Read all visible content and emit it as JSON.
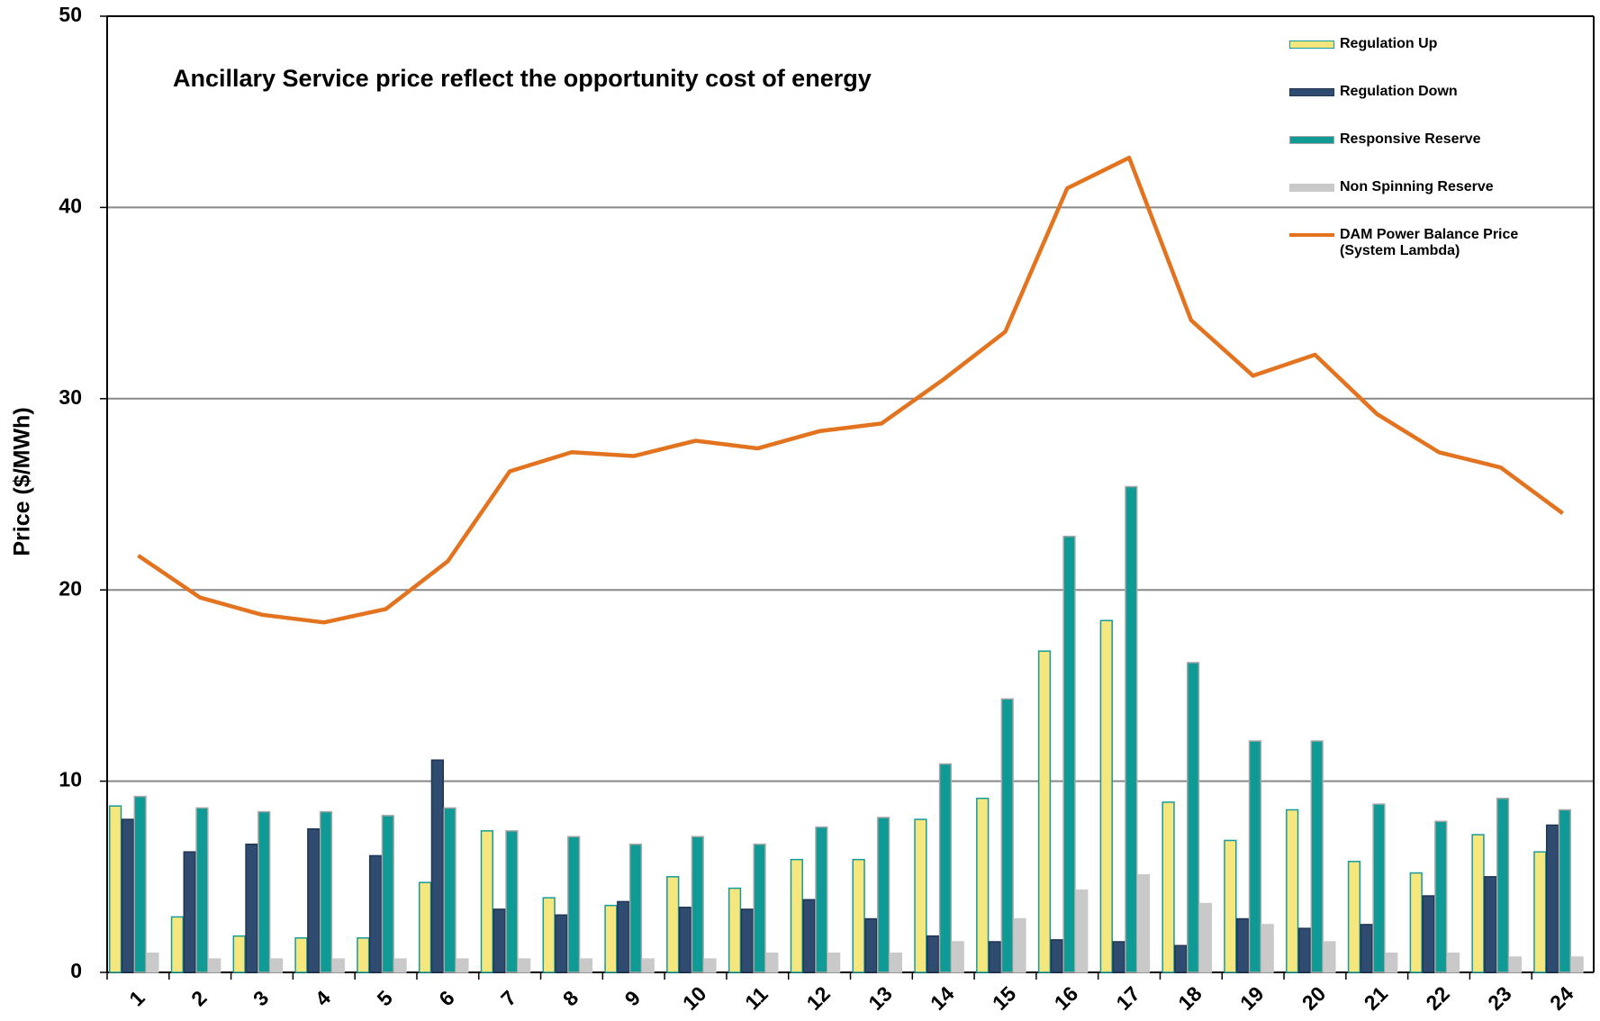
{
  "chart_data": {
    "type": "bar",
    "title": "Ancillary Service price reflect the opportunity cost of energy",
    "y_label": "Price ($/MWh)",
    "categories": [
      "1",
      "2",
      "3",
      "4",
      "5",
      "6",
      "7",
      "8",
      "9",
      "10",
      "11",
      "12",
      "13",
      "14",
      "15",
      "16",
      "17",
      "18",
      "19",
      "20",
      "21",
      "22",
      "23",
      "24"
    ],
    "ylim": [
      0,
      50
    ],
    "yticks": [
      0,
      10,
      20,
      30,
      40,
      50
    ],
    "grid": true,
    "legend": "upper right",
    "series": [
      {
        "name": "Regulation Up",
        "color": "#f6e67e",
        "edge": "#169a9a",
        "values": [
          8.7,
          2.9,
          1.9,
          1.8,
          1.8,
          4.7,
          7.4,
          3.9,
          3.5,
          5.0,
          4.4,
          5.9,
          5.9,
          8.0,
          9.1,
          16.8,
          18.4,
          8.9,
          6.9,
          8.5,
          5.8,
          5.2,
          7.2,
          6.3
        ]
      },
      {
        "name": "Regulation Down",
        "color": "#2f4b6f",
        "edge": "#1f3553",
        "values": [
          8.0,
          6.3,
          6.7,
          7.5,
          6.1,
          11.1,
          3.3,
          3.0,
          3.7,
          3.4,
          3.3,
          3.8,
          2.8,
          1.9,
          1.6,
          1.7,
          1.6,
          1.4,
          2.8,
          2.3,
          2.5,
          4.0,
          5.0,
          7.7
        ]
      },
      {
        "name": "Responsive Reserve",
        "color": "#0f9a96",
        "edge": "#a8a8a8",
        "values": [
          9.2,
          8.6,
          8.4,
          8.4,
          8.2,
          8.6,
          7.4,
          7.1,
          6.7,
          7.1,
          6.7,
          7.6,
          8.1,
          10.9,
          14.3,
          22.8,
          25.4,
          16.2,
          12.1,
          12.1,
          8.8,
          7.9,
          9.1,
          8.5
        ]
      },
      {
        "name": "Non Spinning Reserve",
        "color": "#c9c9c9",
        "edge": "#c9c9c9",
        "values": [
          1.0,
          0.7,
          0.7,
          0.7,
          0.7,
          0.7,
          0.7,
          0.7,
          0.7,
          0.7,
          1.0,
          1.0,
          1.0,
          1.6,
          2.8,
          4.3,
          5.1,
          3.6,
          2.5,
          1.6,
          1.0,
          1.0,
          0.8,
          0.8
        ]
      },
      {
        "name": "DAM Power Balance Price (System Lambda)",
        "type": "line",
        "color": "#e3731e",
        "values": [
          21.8,
          19.6,
          18.7,
          18.3,
          19.0,
          21.5,
          26.2,
          27.2,
          27.0,
          27.8,
          27.4,
          28.3,
          28.7,
          31.0,
          33.5,
          41.0,
          42.6,
          34.1,
          31.2,
          32.3,
          29.2,
          27.2,
          26.4,
          24.0
        ]
      }
    ]
  }
}
